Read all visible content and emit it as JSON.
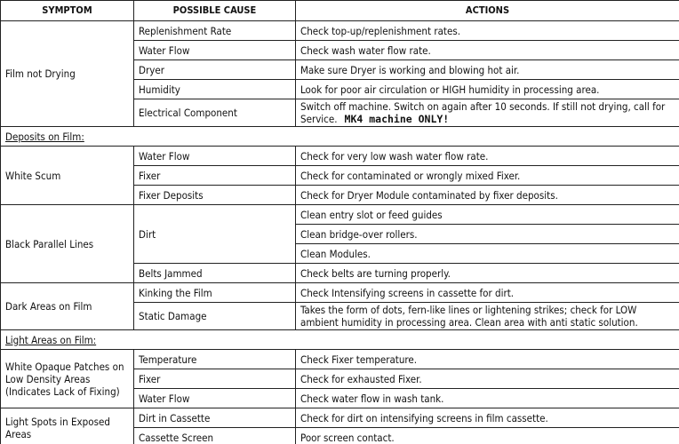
{
  "table": {
    "columns": [
      "SYMPTOM",
      "POSSIBLE CAUSE",
      "ACTIONS"
    ],
    "rows": [
      {
        "symptom": "Film not Drying",
        "causes": [
          {
            "cause": "Replenishment Rate",
            "actions": [
              "Check top-up/replenishment rates."
            ]
          },
          {
            "cause": "Water Flow",
            "actions": [
              "Check wash water flow rate."
            ]
          },
          {
            "cause": "Dryer",
            "actions": [
              "Make sure Dryer is working and blowing hot air."
            ]
          },
          {
            "cause": "Humidity",
            "actions": [
              "Look for poor air circulation or HIGH humidity in processing area."
            ]
          },
          {
            "cause": "Electrical Component",
            "actions": [
              "Switch off machine. Switch on again after 10 seconds. If still not drying, call for Service."
            ],
            "note": "MK4 machine ONLY!"
          }
        ]
      },
      {
        "heading": "Deposits on Film:"
      },
      {
        "symptom": "White Scum",
        "causes": [
          {
            "cause": "Water Flow",
            "actions": [
              "Check for very low wash water flow rate."
            ]
          },
          {
            "cause": "Fixer",
            "actions": [
              "Check for contaminated or wrongly mixed Fixer."
            ]
          },
          {
            "cause": "Fixer Deposits",
            "actions": [
              "Check for Dryer Module contaminated by fixer deposits."
            ]
          }
        ]
      },
      {
        "symptom": "Black Parallel Lines",
        "causes": [
          {
            "cause": "Dirt",
            "actions": [
              "Clean entry slot or feed guides",
              "Clean bridge-over rollers.",
              "Clean Modules."
            ]
          },
          {
            "cause": "Belts Jammed",
            "actions": [
              "Check belts are turning properly."
            ]
          }
        ]
      },
      {
        "symptom": "Dark Areas on Film",
        "causes": [
          {
            "cause": "Kinking the Film",
            "actions": [
              "Check Intensifying screens in cassette for dirt."
            ]
          },
          {
            "cause": "Static Damage",
            "actions": [
              "Takes the form of dots, fern-like lines or lightening strikes; check for LOW ambient humidity in processing area. Clean area with anti static solution."
            ]
          }
        ]
      },
      {
        "heading": "Light Areas on Film:"
      },
      {
        "symptom": "White Opaque Patches on Low Density Areas (Indicates Lack of Fixing)",
        "causes": [
          {
            "cause": "Temperature",
            "actions": [
              "Check Fixer temperature."
            ]
          },
          {
            "cause": "Fixer",
            "actions": [
              "Check for exhausted Fixer."
            ]
          },
          {
            "cause": "Water Flow",
            "actions": [
              "Check water flow in wash tank."
            ]
          }
        ]
      },
      {
        "symptom": "Light Spots in Exposed Areas",
        "causes": [
          {
            "cause": "Dirt in Cassette",
            "actions": [
              "Check for dirt on intensifying screens in film cassette."
            ]
          },
          {
            "cause": "Cassette Screen",
            "actions": [
              "Poor screen contact."
            ]
          }
        ]
      }
    ]
  }
}
